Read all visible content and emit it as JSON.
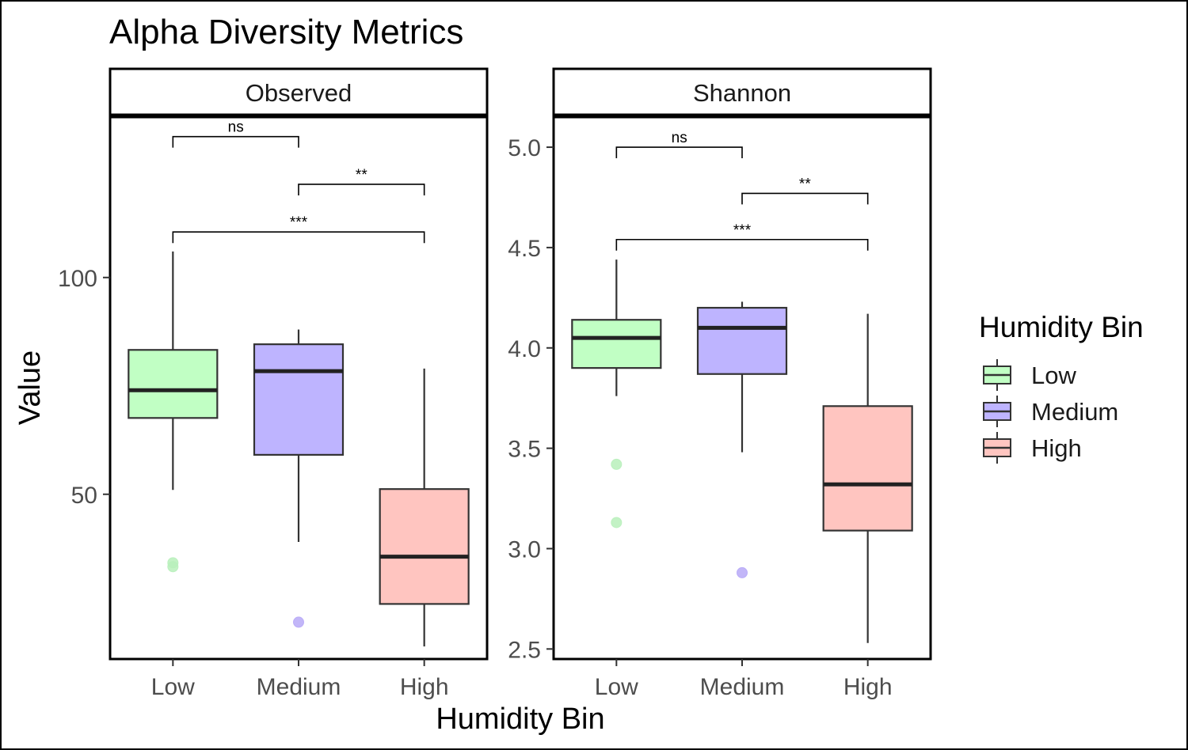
{
  "chart_data": {
    "type": "box",
    "title": "Alpha Diversity Metrics",
    "xlabel": "Humidity Bin",
    "ylabel": "Value",
    "categories": [
      "Low",
      "Medium",
      "High"
    ],
    "legend": {
      "title": "Humidity Bin",
      "position": "right",
      "entries": [
        {
          "label": "Low",
          "color": "#c1ffc4"
        },
        {
          "label": "Medium",
          "color": "#beb4ff"
        },
        {
          "label": "High",
          "color": "#ffc5c0"
        }
      ]
    },
    "colors": {
      "fills": [
        "#c1ffc4",
        "#beb4ff",
        "#ffc5c0"
      ],
      "outliers": [
        "#b8f0bb",
        "#b7a9f7",
        "#f7b3ad"
      ],
      "outline": "#333333"
    },
    "panels": [
      {
        "strip": "Observed",
        "ylim": [
          12,
          137
        ],
        "yticks": [
          50,
          100
        ],
        "ytick_labels": [
          "",
          ""
        ],
        "boxes": [
          {
            "category": "Low",
            "whisker_low": 51,
            "q1": 67.6,
            "median": 74,
            "q3": 83.3,
            "whisker_high": 106,
            "outliers": [
              34.2,
              33.3
            ]
          },
          {
            "category": "Medium",
            "whisker_low": 39,
            "q1": 59.1,
            "median": 78.4,
            "q3": 84.6,
            "whisker_high": 88,
            "outliers": [
              20.5
            ]
          },
          {
            "category": "High",
            "whisker_low": 14.9,
            "q1": 24.7,
            "median": 35.6,
            "q3": 51.2,
            "whisker_high": 79,
            "outliers": []
          }
        ],
        "comparisons": [
          {
            "from": "Low",
            "to": "Medium",
            "label": "ns",
            "y": 132.5,
            "drop": 2.5
          },
          {
            "from": "Medium",
            "to": "High",
            "label": "**",
            "y": 121.5,
            "drop": 2.5
          },
          {
            "from": "Low",
            "to": "High",
            "label": "***",
            "y": 110.5,
            "drop": 2.5
          }
        ]
      },
      {
        "strip": "Shannon",
        "ylim": [
          2.45,
          5.15
        ],
        "yticks": [
          2.5,
          3.0,
          3.5,
          4.0,
          4.5,
          5.0
        ],
        "ytick_labels": [
          "2.5",
          "3.0",
          "3.5",
          "4.0",
          "4.5",
          "5.0"
        ],
        "boxes": [
          {
            "category": "Low",
            "whisker_low": 3.76,
            "q1": 3.9,
            "median": 4.05,
            "q3": 4.14,
            "whisker_high": 4.44,
            "outliers": [
              3.42,
              3.13
            ]
          },
          {
            "category": "Medium",
            "whisker_low": 3.48,
            "q1": 3.87,
            "median": 4.1,
            "q3": 4.2,
            "whisker_high": 4.23,
            "outliers": [
              2.88
            ]
          },
          {
            "category": "High",
            "whisker_low": 2.53,
            "q1": 3.09,
            "median": 3.32,
            "q3": 3.71,
            "whisker_high": 4.17,
            "outliers": []
          }
        ],
        "comparisons": [
          {
            "from": "Low",
            "to": "Medium",
            "label": "ns",
            "y": 5.0,
            "drop": 0.06
          },
          {
            "from": "Medium",
            "to": "High",
            "label": "**",
            "y": 4.77,
            "drop": 0.06
          },
          {
            "from": "Low",
            "to": "High",
            "label": "***",
            "y": 4.54,
            "drop": 0.06
          }
        ]
      }
    ]
  }
}
